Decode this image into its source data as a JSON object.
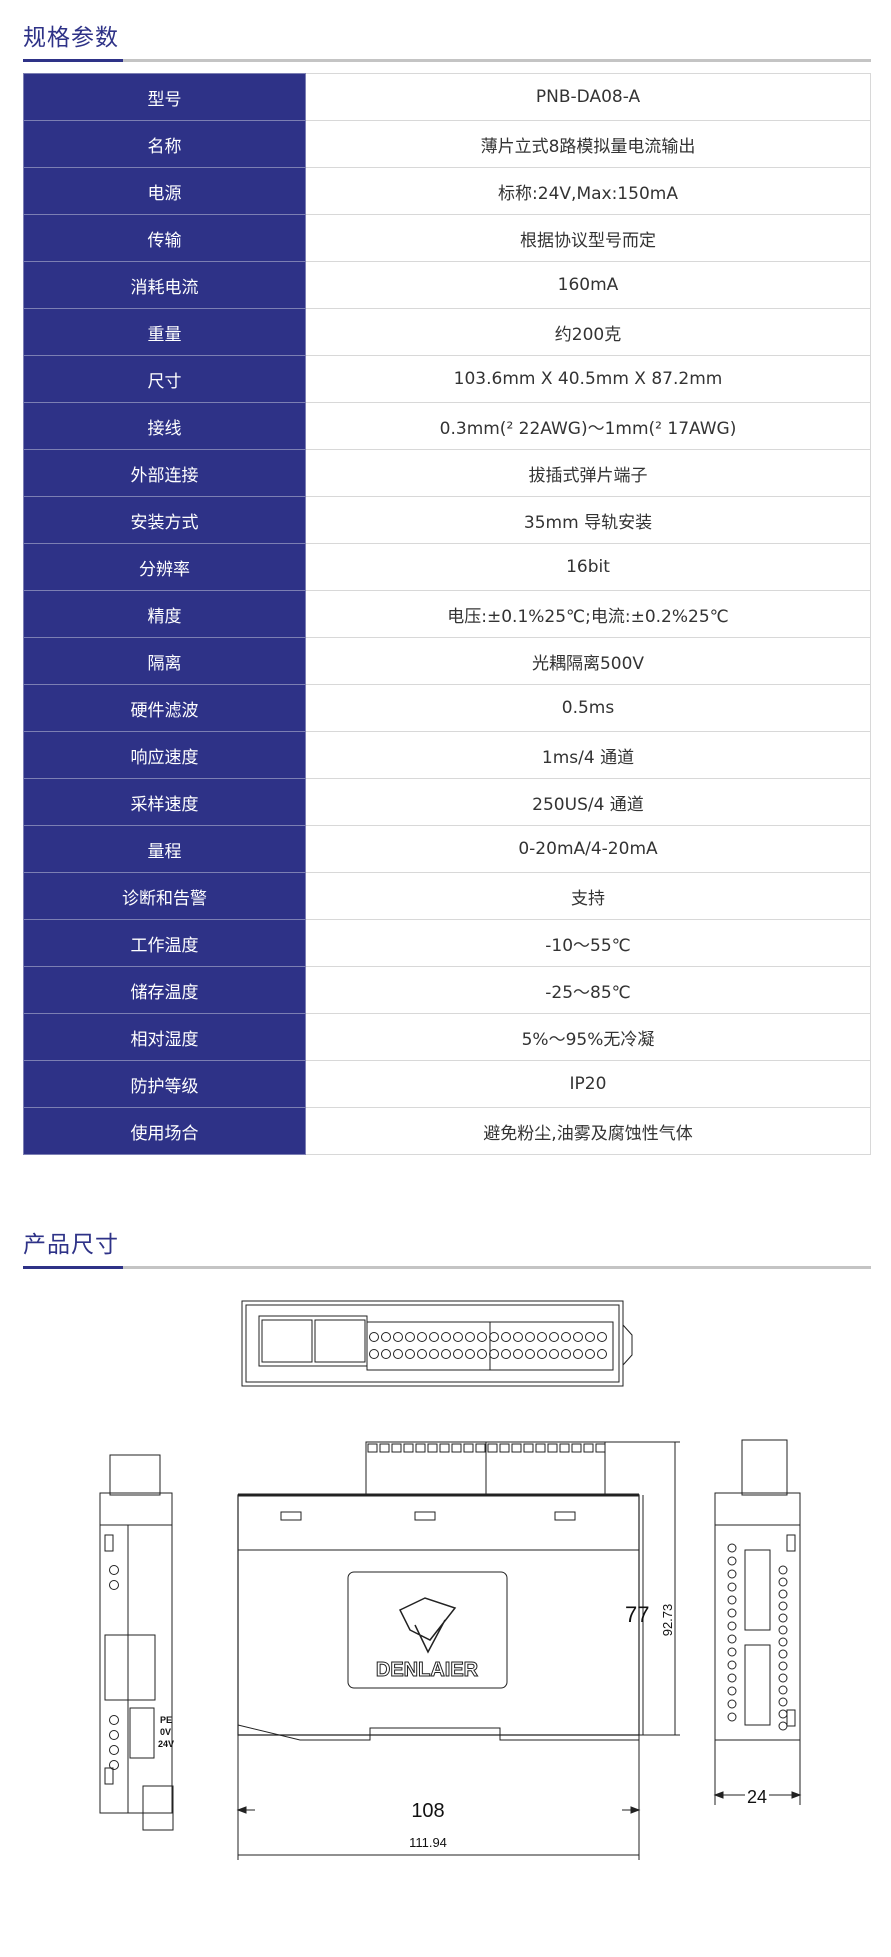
{
  "specs": {
    "title": "规格参数",
    "rows": [
      {
        "label": "型号",
        "value": "PNB-DA08-A"
      },
      {
        "label": "名称",
        "value": "薄片立式8路模拟量电流输出"
      },
      {
        "label": "电源",
        "value": "标称:24V,Max:150mA"
      },
      {
        "label": "传输",
        "value": "根据协议型号而定"
      },
      {
        "label": "消耗电流",
        "value": "160mA"
      },
      {
        "label": "重量",
        "value": "约200克"
      },
      {
        "label": "尺寸",
        "value": "103.6mm X 40.5mm X 87.2mm"
      },
      {
        "label": "接线",
        "value": "0.3mm(² 22AWG)～1mm(² 17AWG)"
      },
      {
        "label": "外部连接",
        "value": "拔插式弹片端子"
      },
      {
        "label": "安装方式",
        "value": "35mm 导轨安装"
      },
      {
        "label": "分辨率",
        "value": "16bit"
      },
      {
        "label": "精度",
        "value": "电压:±0.1%25℃;电流:±0.2%25℃"
      },
      {
        "label": "隔离",
        "value": "光耦隔离500V"
      },
      {
        "label": "硬件滤波",
        "value": "0.5ms"
      },
      {
        "label": "响应速度",
        "value": "1ms/4 通道"
      },
      {
        "label": "采样速度",
        "value": "250US/4 通道"
      },
      {
        "label": "量程",
        "value": "0-20mA/4-20mA"
      },
      {
        "label": "诊断和告警",
        "value": "支持"
      },
      {
        "label": "工作温度",
        "value": "-10～55℃"
      },
      {
        "label": "储存温度",
        "value": "-25～85℃"
      },
      {
        "label": "相对湿度",
        "value": "5%～95%无冷凝"
      },
      {
        "label": "防护等级",
        "value": "IP20"
      },
      {
        "label": "使用场合",
        "value": "避免粉尘,油雾及腐蚀性气体"
      }
    ]
  },
  "dimensions": {
    "title": "产品尺寸",
    "logo_text": "DENLAIER",
    "width_inner": "108",
    "width_outer": "111.94",
    "height_inner": "77",
    "height_outer": "92.73",
    "depth": "24",
    "terminal_labels": [
      "PE",
      "0V",
      "24V"
    ]
  },
  "colors": {
    "accent": "#2e3287",
    "divider": "#c4c4c4"
  }
}
